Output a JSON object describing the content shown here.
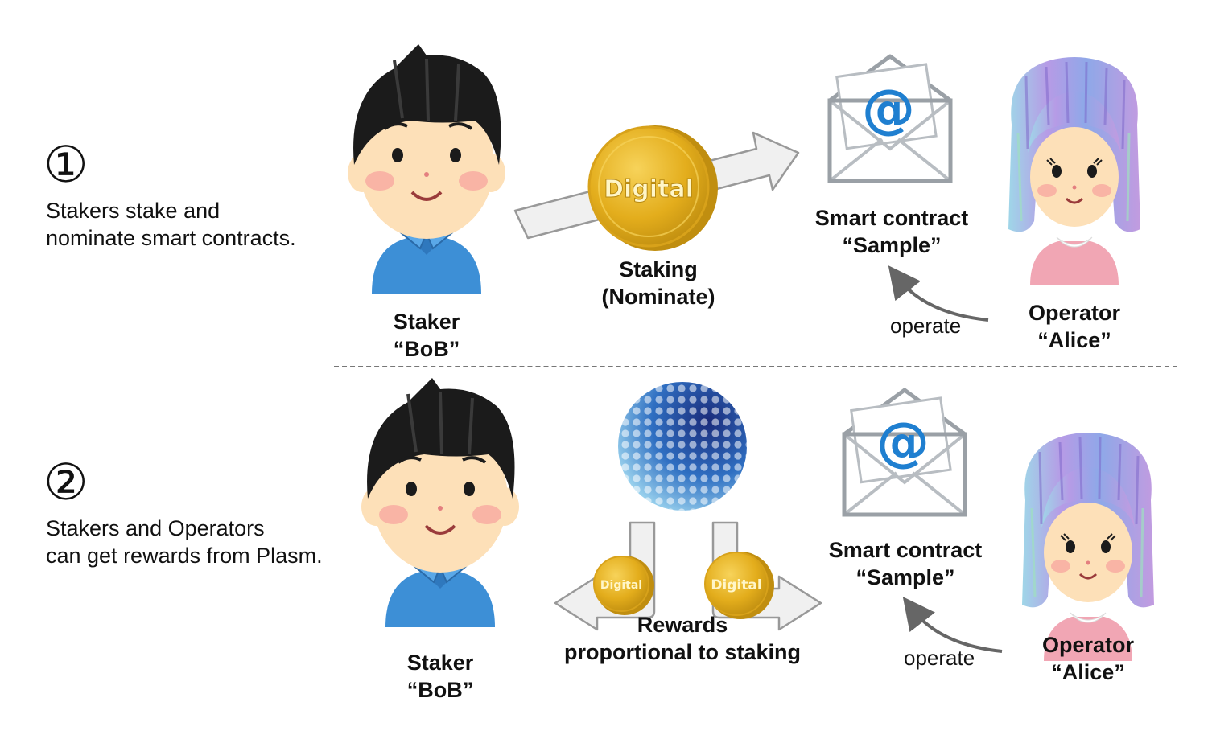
{
  "steps": [
    {
      "number": "①",
      "description_lines": [
        "Stakers stake and",
        "nominate   smart contracts."
      ],
      "staker_lines": [
        "Staker",
        "“BoB”"
      ],
      "action_lines": [
        "Staking",
        "(Nominate)"
      ],
      "contract_lines": [
        "Smart contract",
        "“Sample”"
      ],
      "operate_label": "operate",
      "operator_lines": [
        "Operator",
        "“Alice”"
      ]
    },
    {
      "number": "②",
      "description_lines": [
        "Stakers and Operators",
        "can get rewards from Plasm."
      ],
      "staker_lines": [
        "Staker",
        "“BoB”"
      ],
      "action_lines": [
        "Rewards",
        "proportional to staking"
      ],
      "contract_lines": [
        "Smart contract",
        "“Sample”"
      ],
      "operate_label": "operate",
      "operator_lines": [
        "Operator",
        "“Alice”"
      ]
    }
  ],
  "coin_text": "Digital",
  "envelope_symbol": "@",
  "colors": {
    "coin_gold": "#e8b520",
    "coin_dark": "#b88a12",
    "skin": "#fde0b8",
    "cheek": "#f7a9a0",
    "shirt_blue": "#3d8fd6",
    "girl_dress": "#f1a6b4",
    "hair_purple": "#a98ee0",
    "at_blue": "#1f7fd0",
    "arrow_fill": "#f0f0f0",
    "arrow_stroke": "#999999",
    "operate_arrow": "#666666"
  },
  "icons": [
    "boy-staker-icon",
    "girl-operator-icon",
    "coin-icon",
    "envelope-icon",
    "plasm-logo-icon",
    "arrow-icon"
  ]
}
